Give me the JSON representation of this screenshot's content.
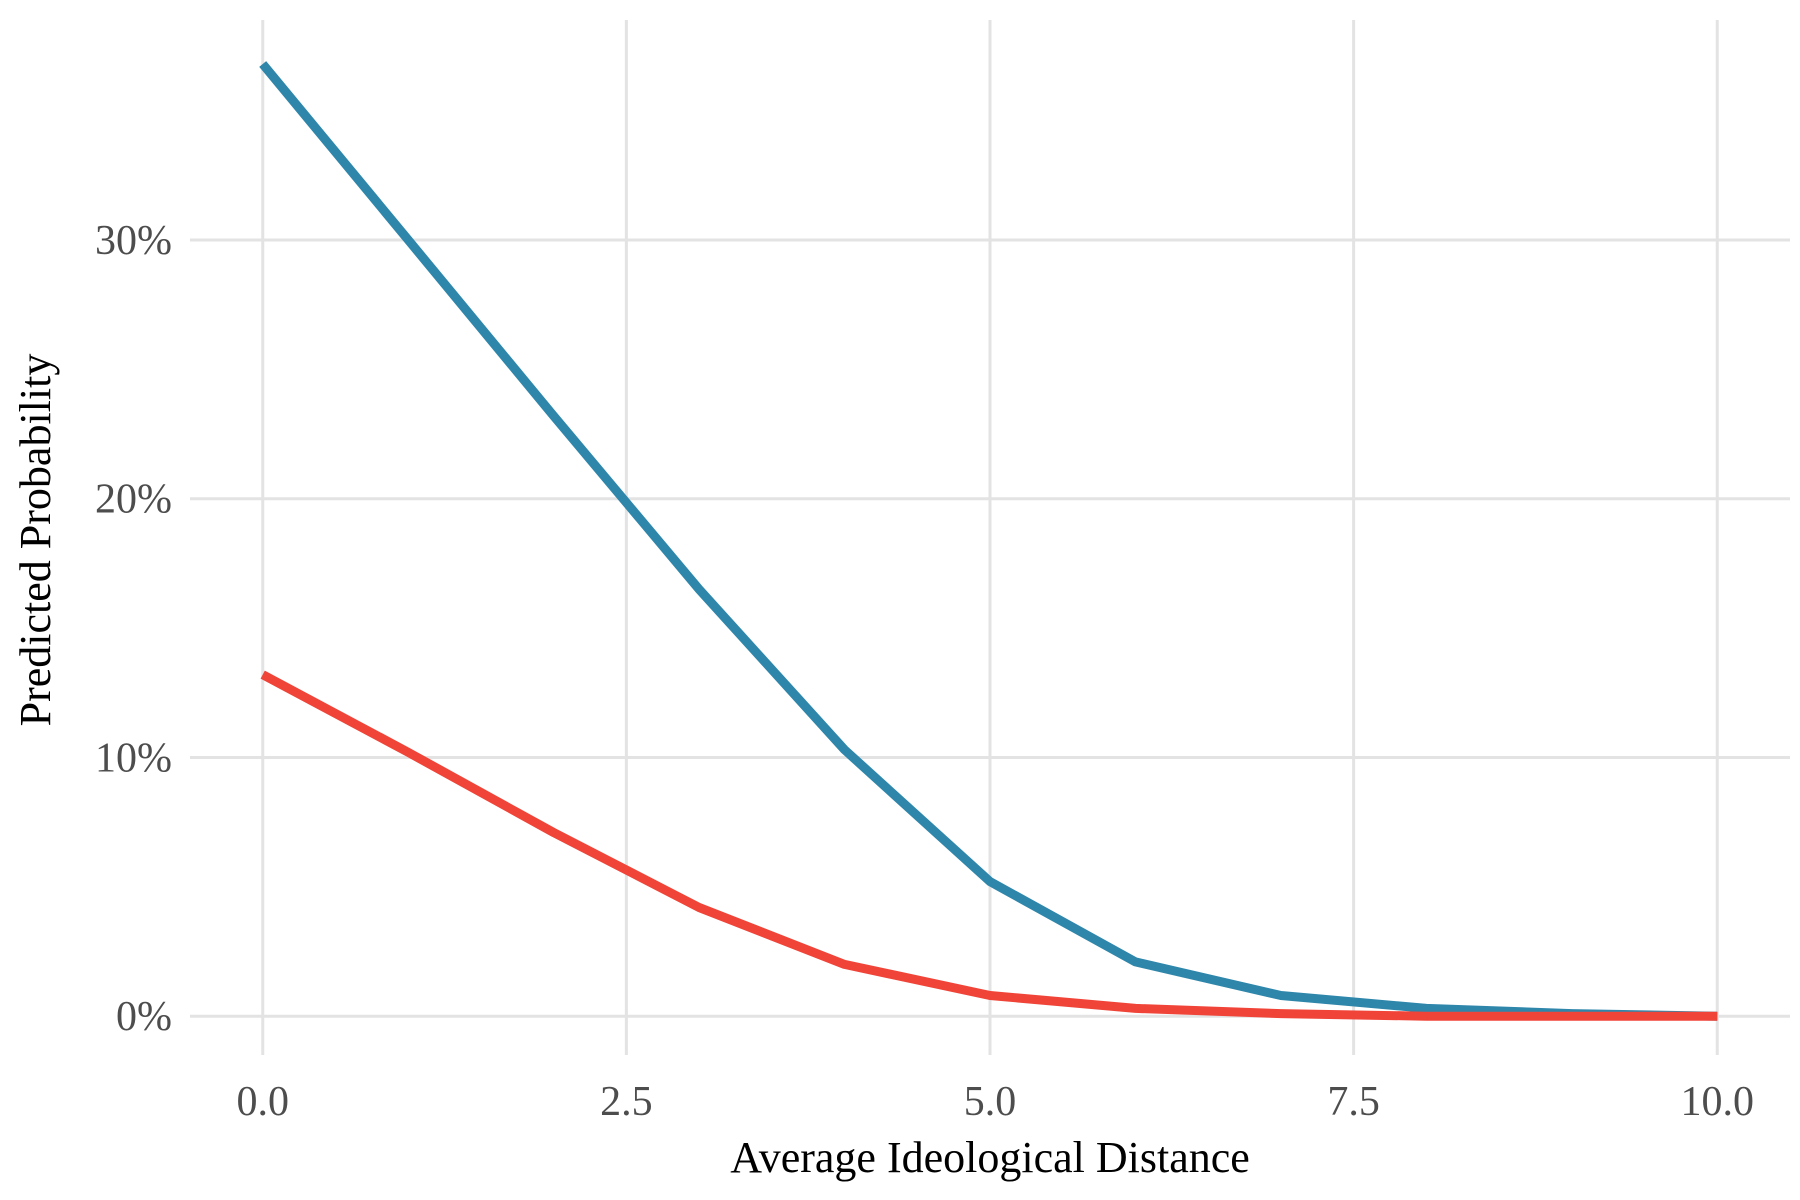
{
  "chart_data": {
    "type": "line",
    "title": "",
    "xlabel": "Average Ideological Distance",
    "ylabel": "Predicted Probability",
    "xlim": [
      -0.5,
      10.5
    ],
    "ylim": [
      -1.5,
      38.5
    ],
    "x_ticks": [
      0,
      2.5,
      5,
      7.5,
      10
    ],
    "x_tick_labels": [
      "0.0",
      "2.5",
      "5.0",
      "7.5",
      "10.0"
    ],
    "y_ticks": [
      0,
      10,
      20,
      30
    ],
    "y_tick_labels": [
      "0%",
      "10%",
      "20%",
      "30%"
    ],
    "grid": true,
    "legend": "none",
    "x": [
      0,
      1,
      2,
      3,
      4,
      5,
      6,
      7,
      8,
      9,
      10
    ],
    "series": [
      {
        "color": "#2e86ab",
        "values": [
          36.8,
          30.0,
          23.2,
          16.5,
          10.3,
          5.2,
          2.1,
          0.8,
          0.3,
          0.1,
          0.0
        ]
      },
      {
        "color": "#f04438",
        "values": [
          13.2,
          10.2,
          7.1,
          4.2,
          2.0,
          0.8,
          0.3,
          0.1,
          0.0,
          0.0,
          0.0
        ]
      }
    ]
  }
}
